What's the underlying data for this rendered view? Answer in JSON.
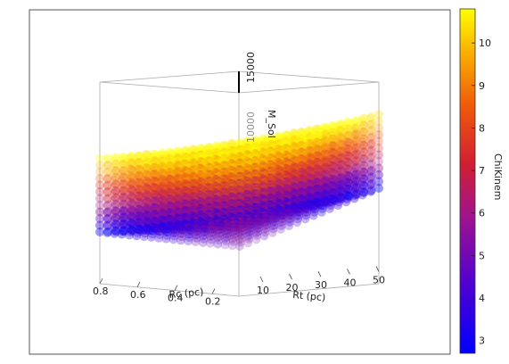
{
  "chart_data": {
    "type": "scatter",
    "projection": "3d",
    "x": {
      "label": "Rc (pc)",
      "range": [
        0,
        0.8
      ],
      "ticks": [
        "0.8",
        "0.6",
        "0.4",
        "0.2"
      ]
    },
    "y": {
      "label": "Rt (pc)",
      "range": [
        0,
        50
      ],
      "ticks": [
        "10",
        "20",
        "30",
        "40",
        "50"
      ]
    },
    "z": {
      "label": "M_Sol",
      "range": [
        0,
        15000
      ],
      "ticks": [
        "15000",
        "10000"
      ]
    },
    "colorbar": {
      "label": "ChiKinem",
      "range": [
        2.7,
        10.8
      ],
      "ticks": [
        "3",
        "4",
        "5",
        "6",
        "7",
        "8",
        "9",
        "10"
      ],
      "colormap": "gnuplot-like (blue-purple-red-orange-yellow)"
    },
    "grid": false,
    "legend": "none",
    "colors": [
      "#0000ff",
      "#5a00c8",
      "#a0148c",
      "#d21e32",
      "#f05a0a",
      "#fab400",
      "#ffff00"
    ]
  }
}
